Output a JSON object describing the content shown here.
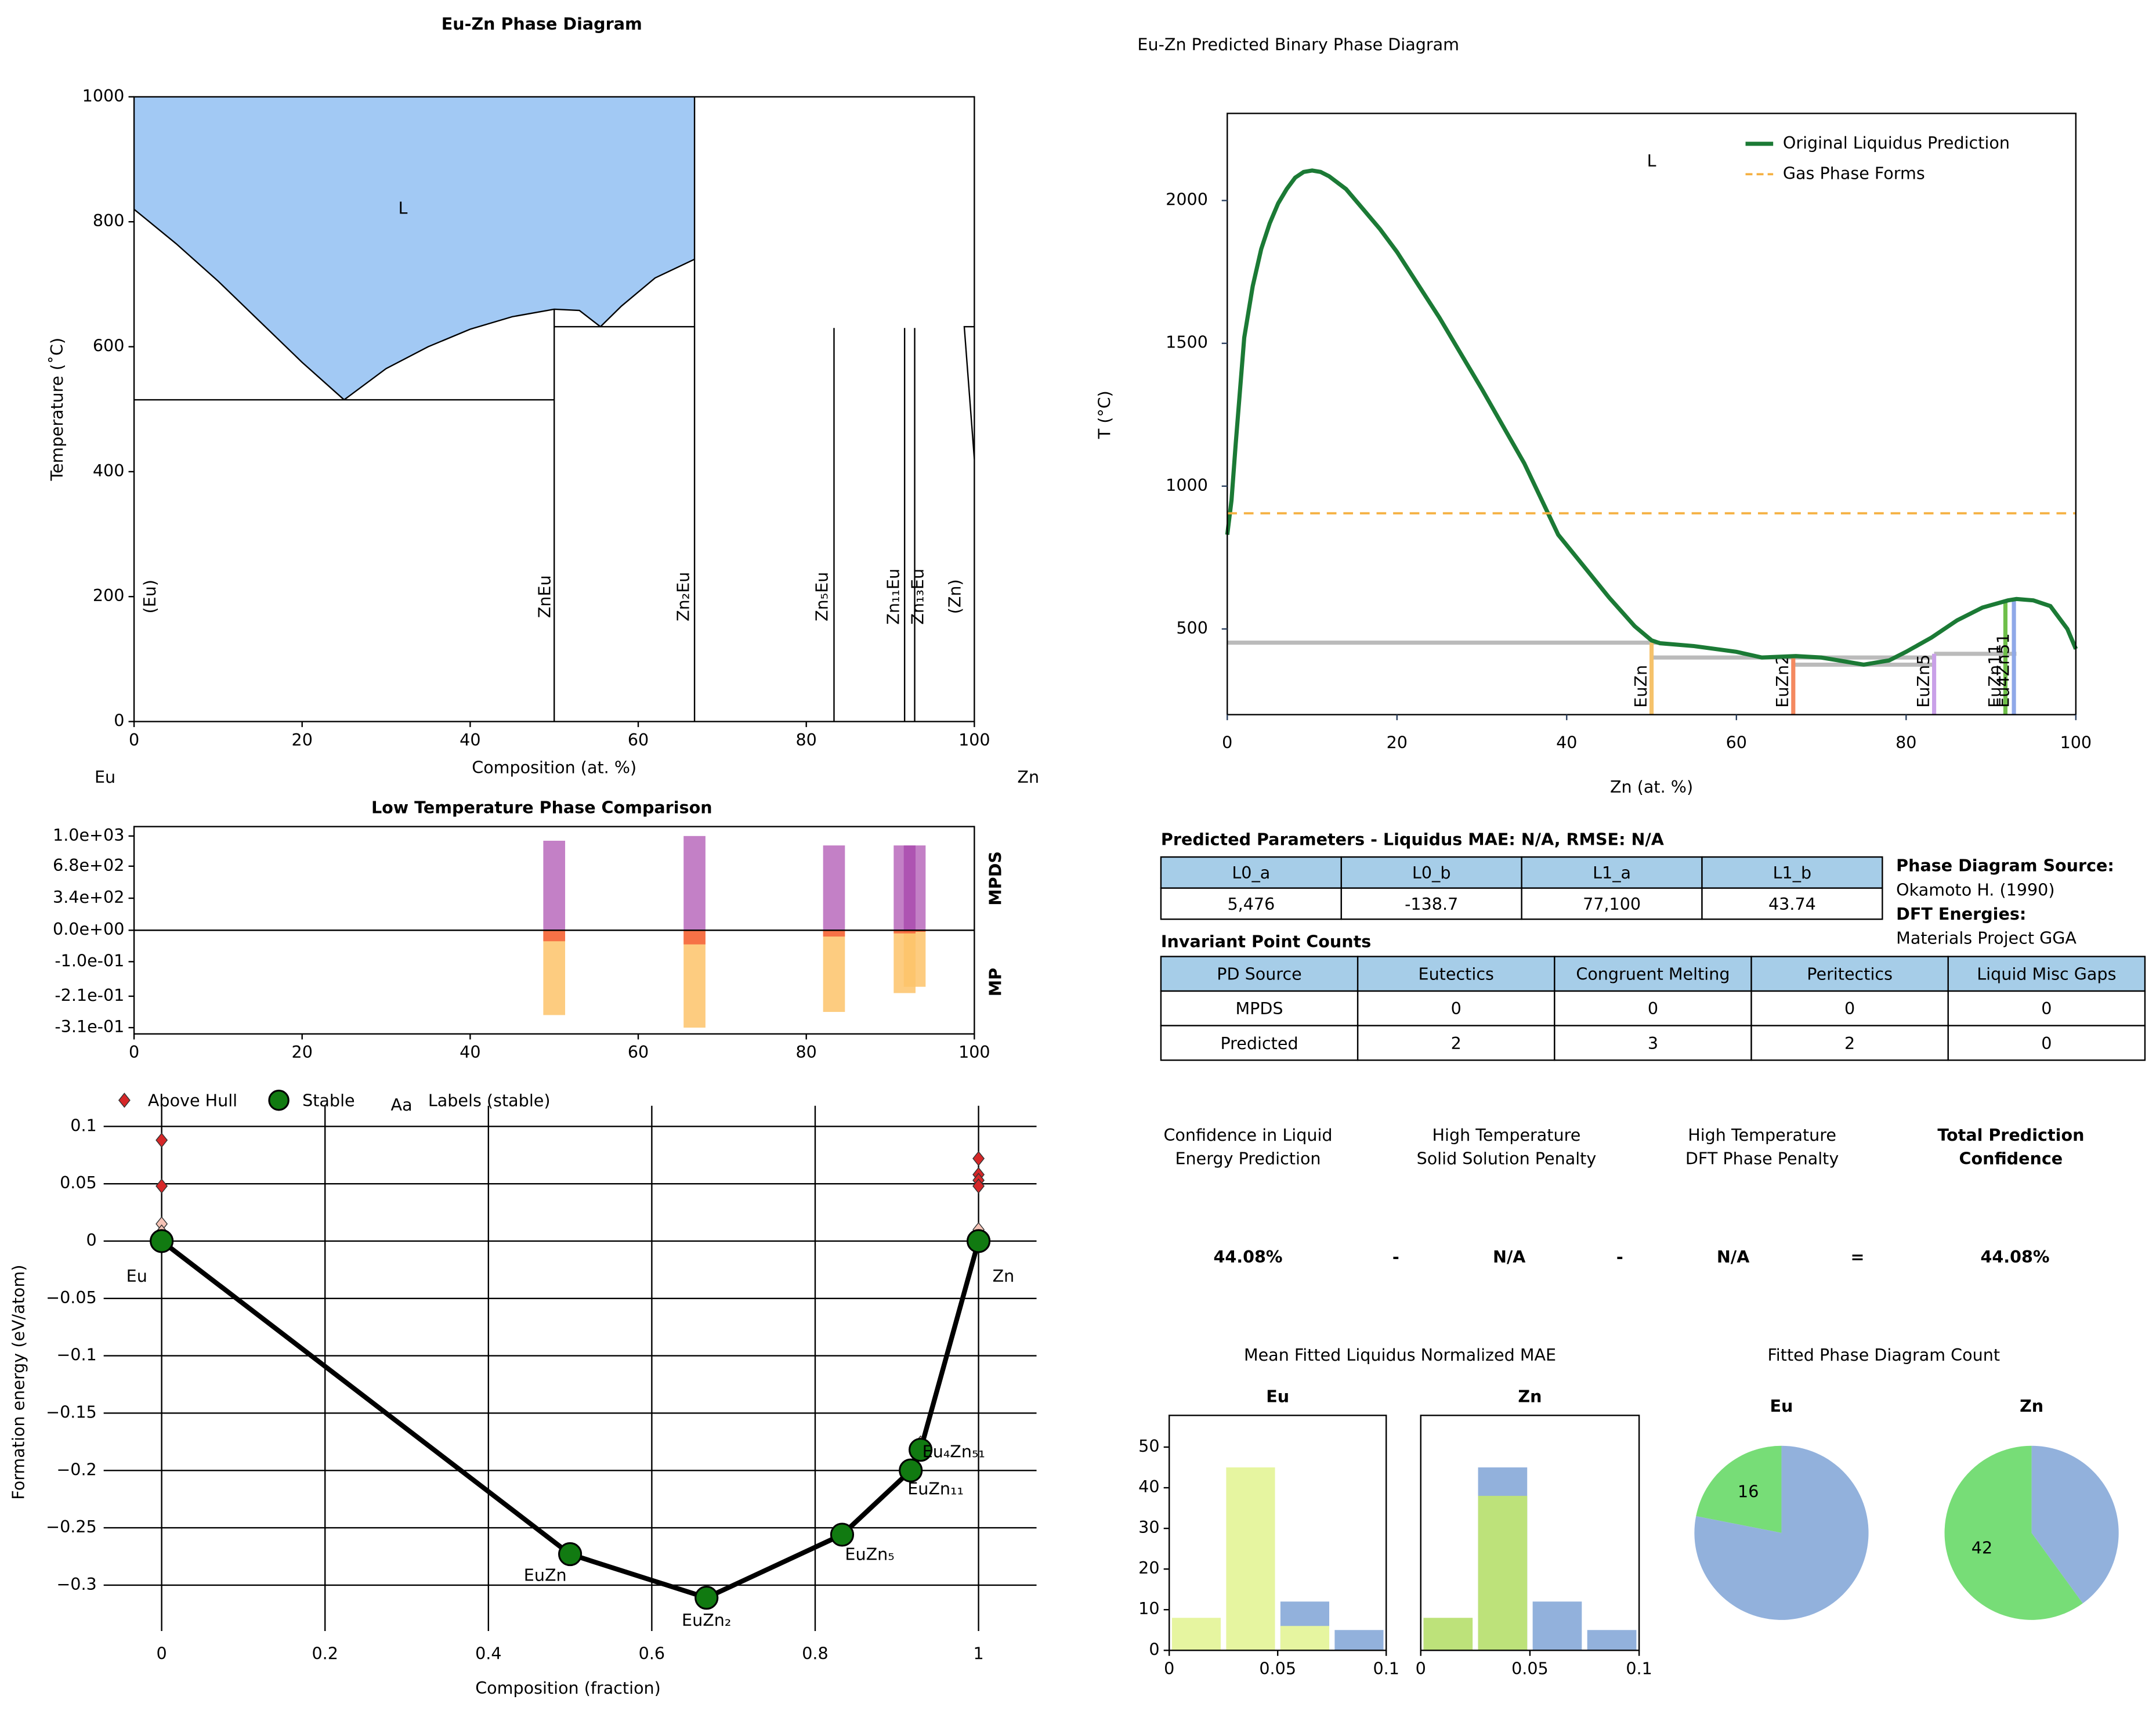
{
  "chart_data": [
    {
      "type": "phase_diagram",
      "title": "Eu-Zn Phase Diagram",
      "xlabel": "Composition (at. %)",
      "ylabel": "Temperature (˚C)",
      "xlim": [
        0,
        100
      ],
      "ylim": [
        0,
        1000
      ],
      "xticks": [
        0,
        20,
        40,
        60,
        80,
        100
      ],
      "yticks": [
        0,
        200,
        400,
        600,
        800,
        1000
      ],
      "end_labels": [
        "Eu",
        "Zn"
      ],
      "regions": [
        {
          "label": "L",
          "color": "#a2c9f4",
          "x": [
            0,
            5,
            10,
            15,
            20,
            25,
            30,
            35,
            40,
            45,
            50,
            53,
            55.5,
            58,
            62,
            66.7,
            66.7,
            0
          ],
          "y": [
            820,
            765,
            705,
            640,
            575,
            515,
            565,
            600,
            628,
            648,
            660,
            658,
            632,
            665,
            710,
            740,
            1000,
            1000
          ]
        }
      ],
      "lines": [
        {
          "x": [
            0,
            5,
            10,
            15,
            20,
            25
          ],
          "y": [
            820,
            765,
            705,
            640,
            575,
            515
          ]
        },
        {
          "x": [
            25,
            30,
            35,
            40,
            45,
            50,
            53,
            55.5
          ],
          "y": [
            515,
            565,
            600,
            628,
            648,
            660,
            658,
            632
          ]
        },
        {
          "x": [
            55.5,
            58,
            62,
            66.7
          ],
          "y": [
            632,
            665,
            710,
            740
          ]
        },
        {
          "x": [
            0,
            50
          ],
          "y": [
            515,
            515
          ]
        },
        {
          "x": [
            50,
            66.7
          ],
          "y": [
            632,
            632
          ]
        },
        {
          "x": [
            50,
            50
          ],
          "y": [
            0,
            660
          ]
        },
        {
          "x": [
            66.7,
            66.7
          ],
          "y": [
            0,
            1000
          ]
        },
        {
          "x": [
            83.3,
            83.3
          ],
          "y": [
            0,
            630
          ]
        },
        {
          "x": [
            91.7,
            91.7
          ],
          "y": [
            0,
            630
          ]
        },
        {
          "x": [
            92.9,
            92.9
          ],
          "y": [
            0,
            630
          ]
        },
        {
          "x": [
            100,
            98.8,
            100
          ],
          "y": [
            632,
            632,
            420
          ]
        }
      ],
      "phases": [
        {
          "label": "(Eu)",
          "x": 2
        },
        {
          "label": "ZnEu",
          "x": 49
        },
        {
          "label": "Zn₂Eu",
          "x": 65.5
        },
        {
          "label": "Zn₅Eu",
          "x": 82
        },
        {
          "label": "Zn₁₁Eu",
          "x": 90.5
        },
        {
          "label": "Zn₁₃Eu",
          "x": 93.4
        },
        {
          "label": "(Zn)",
          "x": 97.8
        }
      ]
    },
    {
      "type": "split_bar",
      "title": "Low Temperature Phase Comparison",
      "xlim": [
        0,
        100
      ],
      "xticks": [
        0,
        20,
        40,
        60,
        80,
        100
      ],
      "ylim": [
        0,
        1100
      ],
      "yticks": [
        {
          "value": 1000,
          "label": "1.0e+03"
        },
        {
          "value": 680,
          "label": "6.8e+02"
        },
        {
          "value": 340,
          "label": "3.4e+02"
        },
        {
          "value": 0,
          "label": "0.0e+00"
        }
      ],
      "y2lim": [
        -0.33,
        0
      ],
      "y2ticks": [
        {
          "value": -0.1,
          "label": "-1.0e-01"
        },
        {
          "value": -0.21,
          "label": "-2.1e-01"
        },
        {
          "value": -0.31,
          "label": "-3.1e-01"
        }
      ],
      "x": [
        50,
        66.7,
        83.3,
        91.7,
        92.9
      ],
      "series": [
        {
          "name": "MPDS",
          "color": "#a33ca8",
          "values": [
            950,
            1000,
            900,
            900,
            900
          ]
        },
        {
          "name": "MP",
          "axis": "y2",
          "color": "#fdc36a",
          "values": [
            -0.27,
            -0.31,
            -0.26,
            -0.2,
            -0.18
          ]
        },
        {
          "axis": "y2",
          "color": "#f4603c",
          "values": [
            -0.035,
            -0.045,
            -0.02,
            -0.01,
            -0.005
          ]
        }
      ]
    },
    {
      "type": "convex_hull",
      "xlabel": "Composition (fraction)",
      "ylabel": "Formation energy (eV/atom)",
      "xlim": [
        -0.071,
        1.071
      ],
      "ylim": [
        -0.34,
        0.118
      ],
      "grid": true,
      "xticks": [
        0,
        0.2,
        0.4,
        0.6,
        0.8,
        1
      ],
      "yticks": [
        0.1,
        0.05,
        0,
        {
          "value": -0.05,
          "label": "−0.05"
        },
        {
          "value": -0.1,
          "label": "−0.1"
        },
        {
          "value": -0.15,
          "label": "−0.15"
        },
        {
          "value": -0.2,
          "label": "−0.2"
        },
        {
          "value": -0.25,
          "label": "−0.25"
        },
        {
          "value": -0.3,
          "label": "−0.3"
        }
      ],
      "series": [
        {
          "name": "Above Hull",
          "color": "#d62728",
          "marker": "diamond",
          "x": [
            0,
            0,
            1,
            1,
            1,
            1
          ],
          "values": [
            0.088,
            0.048,
            0.072,
            0.058,
            0.053,
            0.048
          ]
        },
        {
          "color": "#f6c3b6",
          "marker": "diamond",
          "x": [
            0,
            0,
            0.929,
            1
          ],
          "values": [
            0.015,
            0.008,
            -0.176,
            0.01
          ]
        },
        {
          "name": "Stable",
          "color": "#117a11",
          "marker": "circle",
          "hull": true,
          "x": [
            0,
            0.5,
            0.667,
            0.833,
            0.917,
            0.929,
            1
          ],
          "values": [
            0,
            -0.273,
            -0.311,
            -0.256,
            -0.2,
            -0.182,
            0
          ],
          "labels": [
            "Eu",
            "EuZn",
            "EuZn₂",
            "EuZn₅",
            "EuZn₁₁",
            "Eu₄Zn₅₁",
            "Zn"
          ]
        }
      ],
      "label_legend": "Labels (stable)",
      "label_legend_sample": "Aa"
    },
    {
      "type": "line",
      "title": "Eu-Zn Predicted Binary Phase Diagram",
      "xlabel": "Zn (at. %)",
      "ylabel": "T (°C)",
      "xlim": [
        0,
        100
      ],
      "ylim": [
        200,
        2305
      ],
      "xticks": [
        0,
        20,
        40,
        60,
        80,
        100
      ],
      "yticks": [
        500,
        1000,
        1500,
        2000
      ],
      "legend": "upper right",
      "series": [
        {
          "name": "Original Liquidus Prediction",
          "color": "#1b7a35",
          "x": [
            0,
            0.5,
            1,
            2,
            3,
            4,
            5,
            6,
            7,
            8,
            9,
            10,
            11,
            12,
            14,
            16,
            18,
            20,
            25,
            30,
            35,
            39,
            42,
            45,
            48,
            50,
            51,
            55,
            60,
            63,
            67,
            70,
            73,
            75,
            78,
            80,
            83,
            86,
            89,
            92,
            93,
            95,
            97,
            99,
            100
          ],
          "values": [
            830,
            950,
            1150,
            1520,
            1700,
            1830,
            1920,
            1990,
            2040,
            2080,
            2100,
            2105,
            2100,
            2085,
            2040,
            1970,
            1900,
            1820,
            1590,
            1340,
            1080,
            830,
            720,
            610,
            510,
            460,
            450,
            440,
            420,
            400,
            405,
            400,
            385,
            375,
            390,
            420,
            470,
            530,
            575,
            600,
            605,
            600,
            580,
            500,
            430
          ]
        },
        {
          "name": "Gas Phase Forms",
          "color": "#f5b041",
          "dash": true,
          "x": [
            0,
            100
          ],
          "values": [
            905,
            905
          ]
        }
      ],
      "annotations": [
        {
          "text": "L",
          "x": 50,
          "y": 2135
        }
      ],
      "invariants": [
        {
          "x": [
            0,
            51
          ],
          "values": [
            452,
            452
          ]
        },
        {
          "x": [
            50,
            83.3
          ],
          "values": [
            400,
            400
          ]
        },
        {
          "x": [
            66.7,
            83.3
          ],
          "values": [
            375,
            375
          ]
        },
        {
          "x": [
            83.3,
            93
          ],
          "values": [
            413,
            413
          ]
        }
      ],
      "compounds": [
        {
          "label": "EuZn",
          "x": 50,
          "top": 452,
          "color": "#f5c26b"
        },
        {
          "label": "EuZn2",
          "x": 66.7,
          "top": 400,
          "color": "#f4895f"
        },
        {
          "label": "EuZn5",
          "x": 83.3,
          "top": 413,
          "color": "#c9a0e8"
        },
        {
          "label": "EuZn11",
          "x": 91.7,
          "top": 600,
          "color": "#6fbf4a"
        },
        {
          "label": "Eu4Zn51",
          "x": 92.7,
          "top": 605,
          "color": "#8fa8e8"
        }
      ]
    },
    {
      "type": "histogram",
      "title": "Eu",
      "bins": [
        0,
        0.025,
        0.05,
        0.075,
        0.1
      ],
      "xlim": [
        0,
        0.1
      ],
      "xticks": [
        0,
        0.05,
        0.1
      ],
      "ylim": [
        0,
        57.8
      ],
      "yticks": [
        0,
        10,
        20,
        30,
        40,
        50
      ],
      "series": [
        {
          "color": "#92b1dc",
          "values": [
            0,
            0,
            12,
            5
          ]
        },
        {
          "color": "#e6f5a0",
          "values": [
            8,
            45,
            6,
            0
          ]
        }
      ]
    },
    {
      "type": "histogram",
      "title": "Zn",
      "bins": [
        0,
        0.025,
        0.05,
        0.075,
        0.1
      ],
      "xlim": [
        0,
        0.1
      ],
      "xticks": [
        0,
        0.05,
        0.1
      ],
      "ylim": [
        0,
        57.8
      ],
      "series": [
        {
          "color": "#92b1dc",
          "values": [
            0,
            45,
            12,
            5
          ]
        },
        {
          "color": "#bde27a",
          "values": [
            8,
            38,
            0,
            0
          ]
        }
      ]
    },
    {
      "type": "pie",
      "title": "Eu",
      "values": [
        16,
        57
      ],
      "value_labels": [
        "16",
        null
      ],
      "colors": [
        "#77dd77",
        "#92b1dc"
      ]
    },
    {
      "type": "pie",
      "title": "Zn",
      "values": [
        42,
        28
      ],
      "value_labels": [
        "42",
        null
      ],
      "colors": [
        "#77dd77",
        "#92b1dc"
      ]
    }
  ],
  "panel_titles": {
    "mae": "Mean Fitted Liquidus Normalized MAE",
    "count": "Fitted Phase Diagram Count"
  },
  "params": {
    "title": "Predicted Parameters - Liquidus MAE: N/A, RMSE: N/A",
    "header": [
      "L0_a",
      "L0_b",
      "L1_a",
      "L1_b"
    ],
    "rows": [
      [
        "5,476",
        "-138.7",
        "77,100",
        "43.74"
      ]
    ]
  },
  "sources": [
    "Phase Diagram Source:",
    "Okamoto H. (1990)",
    "DFT Energies:",
    "Materials Project GGA"
  ],
  "invariant_counts": {
    "title": "Invariant Point Counts",
    "header": [
      "PD Source",
      "Eutectics",
      "Congruent Melting",
      "Peritectics",
      "Liquid Misc Gaps"
    ],
    "rows": [
      [
        "MPDS",
        0,
        0,
        0,
        0
      ],
      [
        "Predicted",
        2,
        3,
        2,
        0
      ]
    ]
  },
  "confidence": {
    "headers": [
      [
        "Confidence in Liquid",
        "Energy Prediction"
      ],
      [
        "High Temperature",
        "Solid Solution Penalty"
      ],
      [
        "High Temperature",
        "DFT Phase Penalty"
      ],
      [
        "Total Prediction",
        "Confidence"
      ]
    ],
    "values": [
      "44.08%",
      "N/A",
      "N/A",
      "44.08%"
    ],
    "operators": [
      "-",
      "-",
      "="
    ]
  }
}
